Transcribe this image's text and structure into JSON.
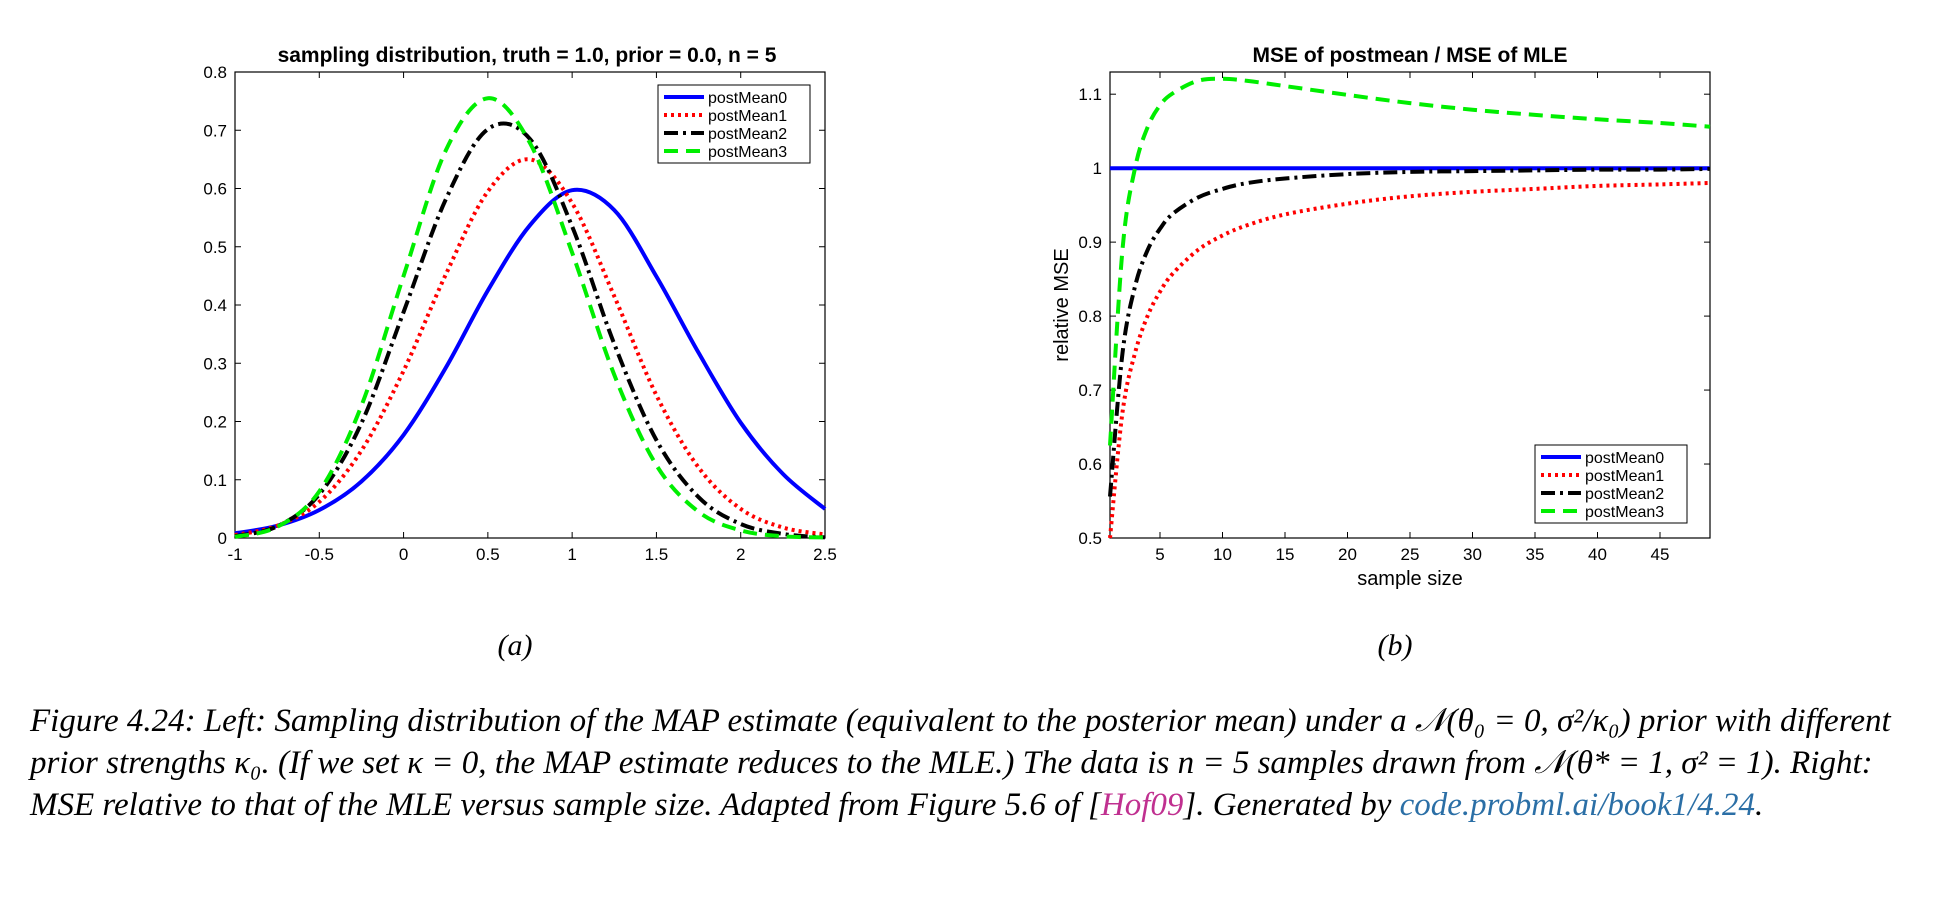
{
  "chart_data": [
    {
      "type": "line",
      "title": "sampling distribution, truth = 1.0, prior = 0.0, n = 5",
      "xlabel": "",
      "ylabel": "",
      "xlim": [
        -1,
        2.5
      ],
      "ylim": [
        0,
        0.8
      ],
      "x_ticks": [
        "-1",
        "-0.5",
        "0",
        "0.5",
        "1",
        "1.5",
        "2",
        "2.5"
      ],
      "y_ticks": [
        "0",
        "0.1",
        "0.2",
        "0.3",
        "0.4",
        "0.5",
        "0.6",
        "0.7",
        "0.8"
      ],
      "legend_position": "top-right",
      "x": [
        -1,
        -0.75,
        -0.5,
        -0.25,
        0,
        0.25,
        0.5,
        0.75,
        1,
        1.25,
        1.5,
        1.75,
        2,
        2.25,
        2.5
      ],
      "series": [
        {
          "name": "postMean0",
          "color": "#0000ff",
          "dash": "solid",
          "values": [
            0.008,
            0.021,
            0.048,
            0.097,
            0.177,
            0.292,
            0.425,
            0.537,
            0.597,
            0.563,
            0.449,
            0.318,
            0.198,
            0.11,
            0.05
          ]
        },
        {
          "name": "postMean1",
          "color": "#ff0000",
          "dash": "dotted",
          "values": [
            0.005,
            0.021,
            0.062,
            0.15,
            0.287,
            0.452,
            0.595,
            0.65,
            0.575,
            0.415,
            0.245,
            0.121,
            0.05,
            0.018,
            0.006
          ]
        },
        {
          "name": "postMean2",
          "color": "#000000",
          "dash": "dashdot",
          "values": [
            0.003,
            0.02,
            0.075,
            0.197,
            0.388,
            0.581,
            0.702,
            0.685,
            0.535,
            0.333,
            0.168,
            0.07,
            0.024,
            0.007,
            0.001
          ]
        },
        {
          "name": "postMean3",
          "color": "#00ee00",
          "dash": "dashed",
          "values": [
            0.002,
            0.019,
            0.08,
            0.227,
            0.45,
            0.665,
            0.755,
            0.678,
            0.49,
            0.28,
            0.125,
            0.045,
            0.013,
            0.003,
            0.001
          ]
        }
      ]
    },
    {
      "type": "line",
      "title": "MSE of postmean / MSE of MLE",
      "xlabel": "sample size",
      "ylabel": "relative MSE",
      "xlim": [
        1,
        49
      ],
      "ylim": [
        0.5,
        1.13
      ],
      "x_ticks": [
        "5",
        "10",
        "15",
        "20",
        "25",
        "30",
        "35",
        "40",
        "45"
      ],
      "y_ticks": [
        "0.5",
        "0.6",
        "0.7",
        "0.8",
        "0.9",
        "1",
        "1.1"
      ],
      "legend_position": "bottom-right",
      "x": [
        1,
        2,
        3,
        4,
        5,
        6,
        8,
        10,
        12,
        15,
        20,
        25,
        30,
        35,
        40,
        45,
        49
      ],
      "series": [
        {
          "name": "postMean0",
          "color": "#0000ff",
          "dash": "solid",
          "values": [
            1,
            1,
            1,
            1,
            1,
            1,
            1,
            1,
            1,
            1,
            1,
            1,
            1,
            1,
            1,
            1,
            1
          ]
        },
        {
          "name": "postMean1",
          "color": "#ff0000",
          "dash": "dotted",
          "values": [
            0.5,
            0.67,
            0.75,
            0.8,
            0.833,
            0.857,
            0.889,
            0.909,
            0.923,
            0.9375,
            0.952,
            0.962,
            0.968,
            0.972,
            0.976,
            0.978,
            0.98
          ]
        },
        {
          "name": "postMean2",
          "color": "#000000",
          "dash": "dashdot",
          "values": [
            0.556,
            0.75,
            0.84,
            0.889,
            0.918,
            0.938,
            0.96,
            0.972,
            0.98,
            0.986,
            0.992,
            0.995,
            0.996,
            0.997,
            0.998,
            0.998,
            0.999
          ]
        },
        {
          "name": "postMean3",
          "color": "#00ee00",
          "dash": "dashed",
          "values": [
            0.625,
            0.89,
            1.0,
            1.055,
            1.085,
            1.101,
            1.118,
            1.121,
            1.118,
            1.111,
            1.099,
            1.088,
            1.079,
            1.072,
            1.066,
            1.061,
            1.056
          ]
        }
      ]
    }
  ],
  "panel_labels": [
    "(a)",
    "(b)"
  ],
  "caption": {
    "p1": "Figure 4.24: Left: Sampling distribution of the MAP estimate (equivalent to the posterior mean) under a 𝒩(θ₀ = 0, σ²/κ₀) prior with different prior strengths κ₀. (If we set κ = 0, the MAP estimate reduces to the MLE.) The data is n = 5 samples drawn from 𝒩(θ* = 1, σ² = 1). Right: MSE relative to that of the MLE versus sample size. Adapted from Figure 5.6 of [",
    "cite": "Hof09",
    "p2": "]. Generated by ",
    "url": "code.probml.ai/book1/4.24",
    "p3": "."
  }
}
